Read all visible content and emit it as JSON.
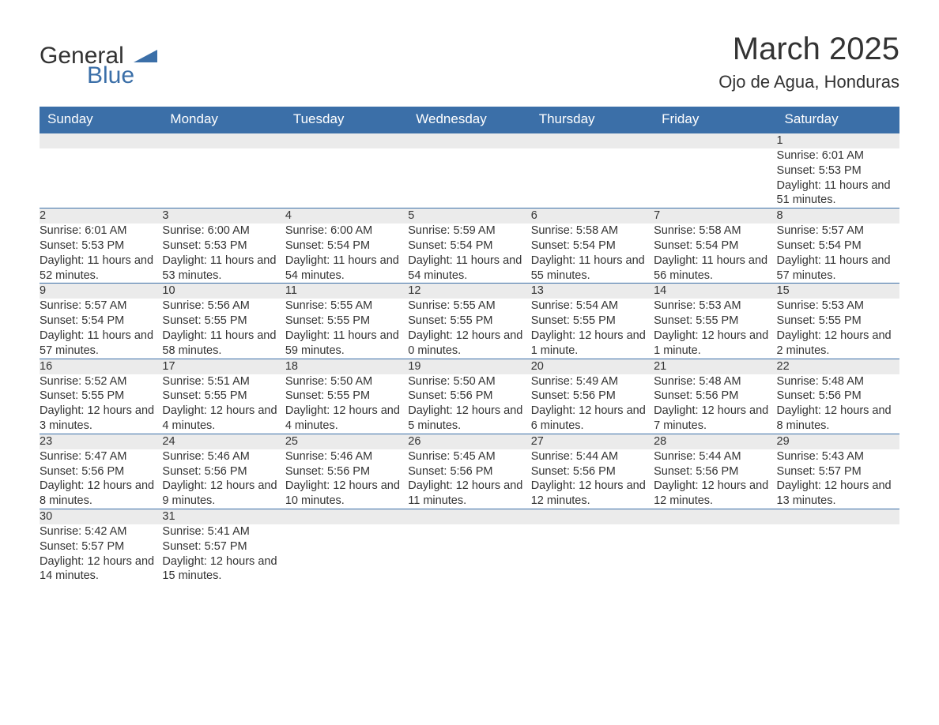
{
  "brand": {
    "line1": "General",
    "line2": "Blue"
  },
  "title": "March 2025",
  "location": "Ojo de Agua, Honduras",
  "colors": {
    "header_bg": "#3b6fa8",
    "header_text": "#ffffff",
    "daynum_bg": "#ebebeb",
    "row_divider": "#3b6fa8",
    "body_text": "#333333"
  },
  "columns": [
    "Sunday",
    "Monday",
    "Tuesday",
    "Wednesday",
    "Thursday",
    "Friday",
    "Saturday"
  ],
  "weeks": [
    [
      null,
      null,
      null,
      null,
      null,
      null,
      {
        "n": "1",
        "sunrise": "Sunrise: 6:01 AM",
        "sunset": "Sunset: 5:53 PM",
        "daylight": "Daylight: 11 hours and 51 minutes."
      }
    ],
    [
      {
        "n": "2",
        "sunrise": "Sunrise: 6:01 AM",
        "sunset": "Sunset: 5:53 PM",
        "daylight": "Daylight: 11 hours and 52 minutes."
      },
      {
        "n": "3",
        "sunrise": "Sunrise: 6:00 AM",
        "sunset": "Sunset: 5:53 PM",
        "daylight": "Daylight: 11 hours and 53 minutes."
      },
      {
        "n": "4",
        "sunrise": "Sunrise: 6:00 AM",
        "sunset": "Sunset: 5:54 PM",
        "daylight": "Daylight: 11 hours and 54 minutes."
      },
      {
        "n": "5",
        "sunrise": "Sunrise: 5:59 AM",
        "sunset": "Sunset: 5:54 PM",
        "daylight": "Daylight: 11 hours and 54 minutes."
      },
      {
        "n": "6",
        "sunrise": "Sunrise: 5:58 AM",
        "sunset": "Sunset: 5:54 PM",
        "daylight": "Daylight: 11 hours and 55 minutes."
      },
      {
        "n": "7",
        "sunrise": "Sunrise: 5:58 AM",
        "sunset": "Sunset: 5:54 PM",
        "daylight": "Daylight: 11 hours and 56 minutes."
      },
      {
        "n": "8",
        "sunrise": "Sunrise: 5:57 AM",
        "sunset": "Sunset: 5:54 PM",
        "daylight": "Daylight: 11 hours and 57 minutes."
      }
    ],
    [
      {
        "n": "9",
        "sunrise": "Sunrise: 5:57 AM",
        "sunset": "Sunset: 5:54 PM",
        "daylight": "Daylight: 11 hours and 57 minutes."
      },
      {
        "n": "10",
        "sunrise": "Sunrise: 5:56 AM",
        "sunset": "Sunset: 5:55 PM",
        "daylight": "Daylight: 11 hours and 58 minutes."
      },
      {
        "n": "11",
        "sunrise": "Sunrise: 5:55 AM",
        "sunset": "Sunset: 5:55 PM",
        "daylight": "Daylight: 11 hours and 59 minutes."
      },
      {
        "n": "12",
        "sunrise": "Sunrise: 5:55 AM",
        "sunset": "Sunset: 5:55 PM",
        "daylight": "Daylight: 12 hours and 0 minutes."
      },
      {
        "n": "13",
        "sunrise": "Sunrise: 5:54 AM",
        "sunset": "Sunset: 5:55 PM",
        "daylight": "Daylight: 12 hours and 1 minute."
      },
      {
        "n": "14",
        "sunrise": "Sunrise: 5:53 AM",
        "sunset": "Sunset: 5:55 PM",
        "daylight": "Daylight: 12 hours and 1 minute."
      },
      {
        "n": "15",
        "sunrise": "Sunrise: 5:53 AM",
        "sunset": "Sunset: 5:55 PM",
        "daylight": "Daylight: 12 hours and 2 minutes."
      }
    ],
    [
      {
        "n": "16",
        "sunrise": "Sunrise: 5:52 AM",
        "sunset": "Sunset: 5:55 PM",
        "daylight": "Daylight: 12 hours and 3 minutes."
      },
      {
        "n": "17",
        "sunrise": "Sunrise: 5:51 AM",
        "sunset": "Sunset: 5:55 PM",
        "daylight": "Daylight: 12 hours and 4 minutes."
      },
      {
        "n": "18",
        "sunrise": "Sunrise: 5:50 AM",
        "sunset": "Sunset: 5:55 PM",
        "daylight": "Daylight: 12 hours and 4 minutes."
      },
      {
        "n": "19",
        "sunrise": "Sunrise: 5:50 AM",
        "sunset": "Sunset: 5:56 PM",
        "daylight": "Daylight: 12 hours and 5 minutes."
      },
      {
        "n": "20",
        "sunrise": "Sunrise: 5:49 AM",
        "sunset": "Sunset: 5:56 PM",
        "daylight": "Daylight: 12 hours and 6 minutes."
      },
      {
        "n": "21",
        "sunrise": "Sunrise: 5:48 AM",
        "sunset": "Sunset: 5:56 PM",
        "daylight": "Daylight: 12 hours and 7 minutes."
      },
      {
        "n": "22",
        "sunrise": "Sunrise: 5:48 AM",
        "sunset": "Sunset: 5:56 PM",
        "daylight": "Daylight: 12 hours and 8 minutes."
      }
    ],
    [
      {
        "n": "23",
        "sunrise": "Sunrise: 5:47 AM",
        "sunset": "Sunset: 5:56 PM",
        "daylight": "Daylight: 12 hours and 8 minutes."
      },
      {
        "n": "24",
        "sunrise": "Sunrise: 5:46 AM",
        "sunset": "Sunset: 5:56 PM",
        "daylight": "Daylight: 12 hours and 9 minutes."
      },
      {
        "n": "25",
        "sunrise": "Sunrise: 5:46 AM",
        "sunset": "Sunset: 5:56 PM",
        "daylight": "Daylight: 12 hours and 10 minutes."
      },
      {
        "n": "26",
        "sunrise": "Sunrise: 5:45 AM",
        "sunset": "Sunset: 5:56 PM",
        "daylight": "Daylight: 12 hours and 11 minutes."
      },
      {
        "n": "27",
        "sunrise": "Sunrise: 5:44 AM",
        "sunset": "Sunset: 5:56 PM",
        "daylight": "Daylight: 12 hours and 12 minutes."
      },
      {
        "n": "28",
        "sunrise": "Sunrise: 5:44 AM",
        "sunset": "Sunset: 5:56 PM",
        "daylight": "Daylight: 12 hours and 12 minutes."
      },
      {
        "n": "29",
        "sunrise": "Sunrise: 5:43 AM",
        "sunset": "Sunset: 5:57 PM",
        "daylight": "Daylight: 12 hours and 13 minutes."
      }
    ],
    [
      {
        "n": "30",
        "sunrise": "Sunrise: 5:42 AM",
        "sunset": "Sunset: 5:57 PM",
        "daylight": "Daylight: 12 hours and 14 minutes."
      },
      {
        "n": "31",
        "sunrise": "Sunrise: 5:41 AM",
        "sunset": "Sunset: 5:57 PM",
        "daylight": "Daylight: 12 hours and 15 minutes."
      },
      null,
      null,
      null,
      null,
      null
    ]
  ]
}
